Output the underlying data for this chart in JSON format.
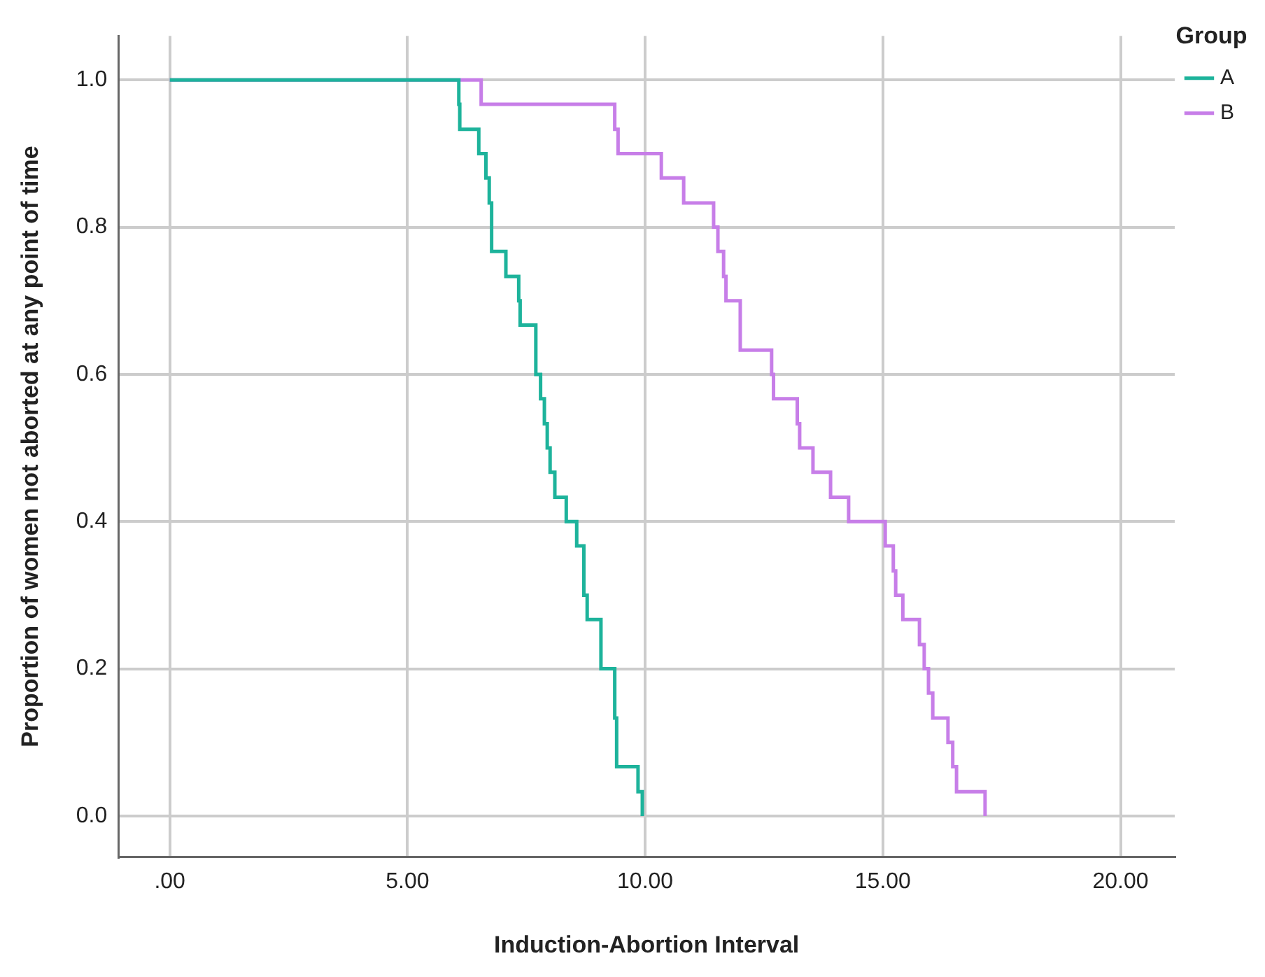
{
  "chart_data": {
    "type": "step",
    "xlabel": "Induction-Abortion Interval",
    "ylabel": "Proportion of women not aborted at any point of time",
    "legend_title": "Group",
    "legend": "top right",
    "grid": true,
    "marker": "none",
    "line_style": "solid",
    "xlim": [
      -1.08,
      21.14
    ],
    "ylim": [
      -0.056,
      1.06
    ],
    "xticks": [
      {
        "value": 0,
        "label": ".00"
      },
      {
        "value": 5,
        "label": "5.00"
      },
      {
        "value": 10,
        "label": "10.00"
      },
      {
        "value": 15,
        "label": "15.00"
      },
      {
        "value": 20,
        "label": "20.00"
      }
    ],
    "yticks": [
      {
        "value": 0,
        "label": "0.0"
      },
      {
        "value": 0.2,
        "label": "0.2"
      },
      {
        "value": 0.4,
        "label": "0.4"
      },
      {
        "value": 0.6,
        "label": "0.6"
      },
      {
        "value": 0.8,
        "label": "0.8"
      },
      {
        "value": 1,
        "label": "1.0"
      }
    ],
    "series": [
      {
        "name": "A",
        "color": "#1db39b",
        "x": [
          0,
          6.08,
          6.1,
          6.5,
          6.65,
          6.72,
          6.77,
          7.07,
          7.34,
          7.37,
          7.7,
          7.8,
          7.88,
          7.94,
          8.0,
          8.1,
          8.34,
          8.56,
          8.71,
          8.78,
          9.07,
          9.36,
          9.4,
          9.85,
          9.94
        ],
        "values": [
          1,
          0.967,
          0.933,
          0.9,
          0.867,
          0.833,
          0.767,
          0.733,
          0.7,
          0.667,
          0.6,
          0.567,
          0.533,
          0.5,
          0.467,
          0.433,
          0.4,
          0.367,
          0.3,
          0.267,
          0.2,
          0.133,
          0.067,
          0.033,
          0
        ]
      },
      {
        "name": "B",
        "color": "#c77ee8",
        "x": [
          0,
          6.55,
          9.36,
          9.43,
          10.34,
          10.81,
          11.44,
          11.53,
          11.65,
          11.7,
          12.0,
          12.66,
          12.7,
          13.2,
          13.25,
          13.53,
          13.9,
          14.28,
          15.05,
          15.22,
          15.27,
          15.42,
          15.77,
          15.87,
          15.96,
          16.05,
          16.37,
          16.47,
          16.55,
          17.15
        ],
        "values": [
          1,
          0.967,
          0.933,
          0.9,
          0.867,
          0.833,
          0.8,
          0.767,
          0.733,
          0.7,
          0.633,
          0.6,
          0.567,
          0.533,
          0.5,
          0.467,
          0.433,
          0.4,
          0.367,
          0.333,
          0.3,
          0.267,
          0.233,
          0.2,
          0.167,
          0.133,
          0.1,
          0.067,
          0.033,
          0
        ]
      }
    ]
  }
}
